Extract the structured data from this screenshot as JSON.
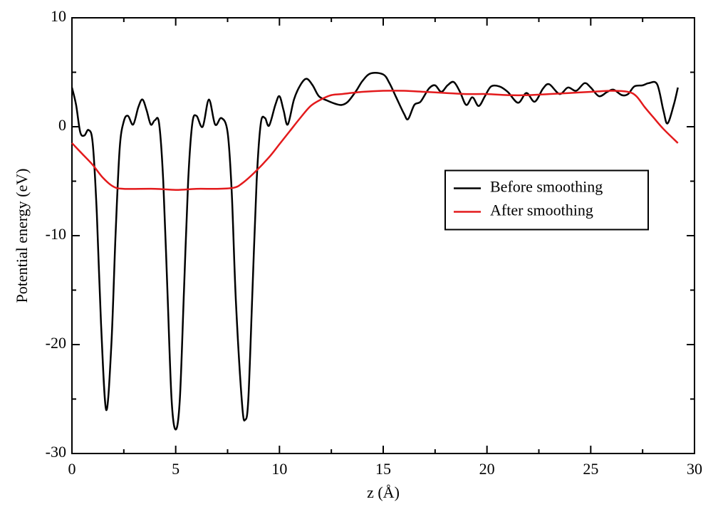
{
  "chart_data": {
    "type": "line",
    "xlabel": "z (Å)",
    "ylabel": "Potential energy (eV)",
    "xlim": [
      0,
      30
    ],
    "ylim": [
      -30,
      10
    ],
    "xticks": [
      0,
      5,
      10,
      15,
      20,
      25,
      30
    ],
    "yticks": [
      -30,
      -20,
      -10,
      0,
      10
    ],
    "minor_xticks": [
      2.5,
      7.5,
      12.5,
      17.5,
      22.5,
      27.5
    ],
    "minor_yticks": [
      -25,
      -15,
      -5,
      5
    ],
    "legend": "center right",
    "series": [
      {
        "name": "Before smoothing",
        "color": "#000000",
        "x": [
          0,
          0.2,
          0.4,
          0.6,
          0.8,
          1.0,
          1.2,
          1.4,
          1.65,
          1.9,
          2.1,
          2.3,
          2.5,
          2.7,
          2.95,
          3.2,
          3.4,
          3.6,
          3.8,
          4.0,
          4.2,
          4.4,
          4.6,
          4.8,
          5.0,
          5.2,
          5.4,
          5.6,
          5.8,
          6.0,
          6.3,
          6.6,
          6.9,
          7.2,
          7.5,
          7.7,
          7.9,
          8.2,
          8.35,
          8.5,
          8.7,
          8.9,
          9.1,
          9.3,
          9.5,
          9.8,
          10.0,
          10.2,
          10.4,
          10.7,
          11.0,
          11.3,
          11.6,
          11.9,
          12.3,
          12.7,
          13.0,
          13.3,
          13.7,
          14.0,
          14.4,
          15.0,
          15.3,
          15.6,
          16.0,
          16.2,
          16.5,
          16.8,
          17.2,
          17.5,
          17.8,
          18.1,
          18.4,
          18.7,
          19.0,
          19.3,
          19.6,
          19.9,
          20.2,
          20.6,
          21.0,
          21.5,
          21.9,
          22.3,
          22.7,
          23.0,
          23.5,
          23.9,
          24.3,
          24.7,
          25.0,
          25.4,
          25.8,
          26.1,
          26.5,
          26.8,
          27.1,
          27.5,
          27.8,
          28.2,
          28.5,
          28.7,
          29.0,
          29.2
        ],
        "values": [
          3.6,
          2.0,
          -0.5,
          -0.8,
          -0.3,
          -1.5,
          -8,
          -18,
          -26,
          -20,
          -10,
          -2,
          0.5,
          1.0,
          0.2,
          1.8,
          2.5,
          1.5,
          0.2,
          0.6,
          0.3,
          -5,
          -15,
          -25,
          -27.8,
          -25,
          -15,
          -5,
          0.3,
          1.0,
          0,
          2.5,
          0.2,
          0.8,
          -0.5,
          -6,
          -16,
          -25.5,
          -26.9,
          -25,
          -15,
          -5,
          0.3,
          0.8,
          0.1,
          2.0,
          2.8,
          1.5,
          0.2,
          2.5,
          3.8,
          4.4,
          3.8,
          2.8,
          2.4,
          2.1,
          2.0,
          2.3,
          3.3,
          4.2,
          4.9,
          4.8,
          4.0,
          2.8,
          1.2,
          0.7,
          2.0,
          2.3,
          3.5,
          3.8,
          3.2,
          3.8,
          4.1,
          3.2,
          2.0,
          2.7,
          1.9,
          2.8,
          3.7,
          3.7,
          3.2,
          2.2,
          3.1,
          2.3,
          3.5,
          3.9,
          3.0,
          3.6,
          3.3,
          4.0,
          3.6,
          2.8,
          3.2,
          3.4,
          2.9,
          3.0,
          3.7,
          3.8,
          4.0,
          3.9,
          1.5,
          0.3,
          2.0,
          3.6
        ]
      },
      {
        "name": "After smoothing",
        "color": "#e31a1c",
        "x": [
          0,
          0.5,
          1,
          1.5,
          2,
          2.5,
          4,
          5,
          6,
          7,
          7.8,
          8.2,
          8.8,
          9.5,
          10,
          10.5,
          11,
          11.5,
          12,
          12.5,
          13,
          14,
          15,
          16,
          17,
          18,
          19,
          20,
          21,
          22,
          23,
          24,
          25,
          26,
          26.8,
          27.2,
          27.6,
          28,
          28.5,
          29.2
        ],
        "values": [
          -1.5,
          -2.5,
          -3.5,
          -4.7,
          -5.5,
          -5.7,
          -5.7,
          -5.8,
          -5.7,
          -5.7,
          -5.6,
          -5.2,
          -4.2,
          -2.8,
          -1.6,
          -0.4,
          0.8,
          1.9,
          2.5,
          2.9,
          3.0,
          3.2,
          3.3,
          3.3,
          3.2,
          3.1,
          3.0,
          3.0,
          2.9,
          2.9,
          3.0,
          3.1,
          3.2,
          3.3,
          3.2,
          2.8,
          1.8,
          0.9,
          -0.2,
          -1.5
        ]
      }
    ]
  }
}
